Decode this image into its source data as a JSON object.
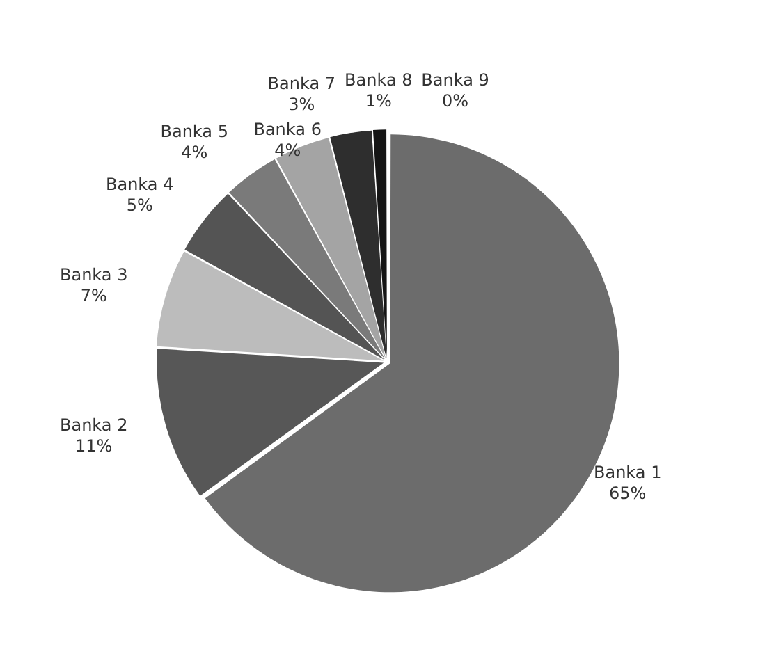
{
  "chart_data": {
    "type": "pie",
    "categories": [
      "Banka 1",
      "Banka 2",
      "Banka 3",
      "Banka 4",
      "Banka 5",
      "Banka 6",
      "Banka 7",
      "Banka 8",
      "Banka 9"
    ],
    "values": [
      65,
      11,
      7,
      5,
      4,
      4,
      3,
      1,
      0
    ],
    "value_labels": [
      "65%",
      "11%",
      "7%",
      "5%",
      "4%",
      "4%",
      "3%",
      "1%",
      "0%"
    ],
    "colors": [
      "#6c6c6c",
      "#575757",
      "#bcbcbc",
      "#545454",
      "#7a7a7a",
      "#a4a4a4",
      "#2e2e2e",
      "#151515",
      "#000000"
    ],
    "legend": false
  }
}
